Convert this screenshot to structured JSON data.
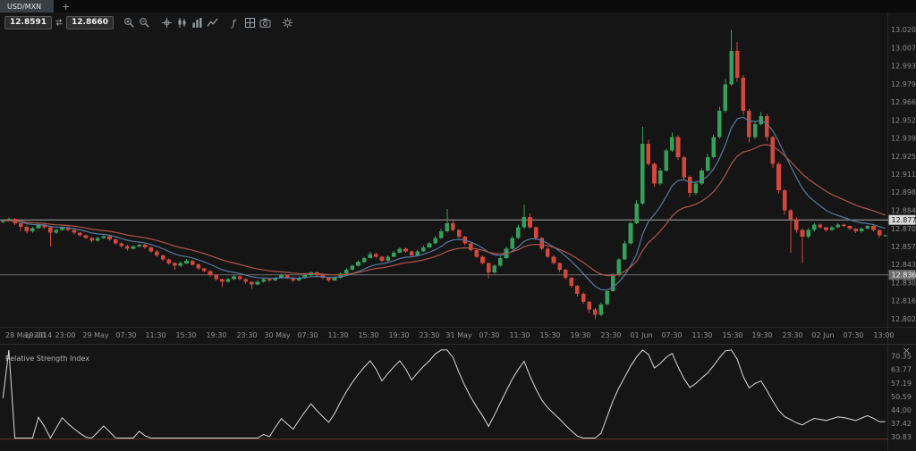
{
  "tabbar": {
    "active_tab": "USD/MXN",
    "new_tab_label": "+"
  },
  "toolbar": {
    "bid": "12.8591",
    "ask": "12.8660",
    "groups": [
      [
        "zoom-in",
        "zoom-out"
      ],
      [
        "crosshair",
        "candlestick",
        "bar-chart",
        "line-chart"
      ],
      [
        "indicators",
        "grid",
        "snapshot"
      ],
      [
        "settings"
      ]
    ]
  },
  "colors": {
    "chart_bg": "#151515",
    "candle_up": "#34a05a",
    "candle_down": "#d4483a",
    "axis_text": "#8c8c8c",
    "time_text": "#909090",
    "separator": "#282828",
    "icon_color": "#979ca1"
  },
  "chart_data": {
    "type": "candlestick",
    "symbol": "USD/MXN",
    "price_axis": {
      "min": 12.797,
      "max": 13.026,
      "labels": [
        "13.0208",
        "13.0072",
        "12.9936",
        "12.9799",
        "12.9663",
        "12.9527",
        "12.9391",
        "12.9254",
        "12.9118",
        "12.8982",
        "12.8846",
        "12.8709",
        "12.8573",
        "12.8437",
        "12.8300",
        "12.8164",
        "12.8027"
      ]
    },
    "time_axis": {
      "labels": [
        "28 May 2014",
        "19:00",
        "23:00",
        "29 May",
        "07:30",
        "11:30",
        "15:30",
        "19:30",
        "23:30",
        "30 May",
        "07:30",
        "11:30",
        "15:30",
        "19:30",
        "23:30",
        "31 May",
        "07:30",
        "11:30",
        "15:30",
        "19:30",
        "23:30",
        "01 Jun",
        "07:30",
        "11:30",
        "15:30",
        "19:30",
        "23:30",
        "02 Jun",
        "07:30",
        "13:00"
      ]
    },
    "price_lines": [
      {
        "value": 12.8777,
        "label": "12.8777",
        "line_color": "#a6a6a6",
        "tag_bg": "#d8d8d8",
        "tag_text": "#161616"
      },
      {
        "value": 12.8363,
        "label": "12.8363",
        "line_color": "#6f6f6f",
        "tag_bg": "#6e6e6e",
        "tag_text": "#f2f2f2"
      }
    ],
    "moving_averages": [
      {
        "name": "ma-fast",
        "period": 10,
        "color": "#56799f"
      },
      {
        "name": "ma-slow",
        "period": 21,
        "color": "#b0544c"
      }
    ],
    "candles": [
      [
        12.876,
        12.8778,
        12.875,
        12.877
      ],
      [
        12.877,
        12.8795,
        12.8765,
        12.8785
      ],
      [
        12.8785,
        12.8791,
        12.8738,
        12.875
      ],
      [
        12.875,
        12.8755,
        12.869,
        12.8725
      ],
      [
        12.8725,
        12.8733,
        12.8675,
        12.869
      ],
      [
        12.869,
        12.8725,
        12.8682,
        12.8715
      ],
      [
        12.8715,
        12.8752,
        12.8709,
        12.874
      ],
      [
        12.874,
        12.8748,
        12.871,
        12.872
      ],
      [
        12.872,
        12.8725,
        12.8575,
        12.868
      ],
      [
        12.868,
        12.871,
        12.8672,
        12.87
      ],
      [
        12.87,
        12.8728,
        12.8694,
        12.872
      ],
      [
        12.872,
        12.8726,
        12.869,
        12.87
      ],
      [
        12.87,
        12.8708,
        12.8668,
        12.868
      ],
      [
        12.868,
        12.8685,
        12.865,
        12.866
      ],
      [
        12.866,
        12.8668,
        12.8632,
        12.864
      ],
      [
        12.864,
        12.8646,
        12.8606,
        12.862
      ],
      [
        12.862,
        12.865,
        12.8614,
        12.864
      ],
      [
        12.864,
        12.8667,
        12.8635,
        12.8655
      ],
      [
        12.8655,
        12.8661,
        12.862,
        12.863
      ],
      [
        12.863,
        12.8638,
        12.8588,
        12.86
      ],
      [
        12.86,
        12.8605,
        12.857,
        12.858
      ],
      [
        12.858,
        12.8588,
        12.8545,
        12.856
      ],
      [
        12.856,
        12.8585,
        12.8554,
        12.8575
      ],
      [
        12.8575,
        12.8598,
        12.857,
        12.859
      ],
      [
        12.859,
        12.8596,
        12.856,
        12.857
      ],
      [
        12.857,
        12.8575,
        12.8528,
        12.854
      ],
      [
        12.854,
        12.8548,
        12.85,
        12.851
      ],
      [
        12.851,
        12.8516,
        12.8465,
        12.848
      ],
      [
        12.848,
        12.8485,
        12.8438,
        12.845
      ],
      [
        12.845,
        12.8458,
        12.84,
        12.843
      ],
      [
        12.843,
        12.846,
        12.8422,
        12.845
      ],
      [
        12.845,
        12.8482,
        12.8445,
        12.847
      ],
      [
        12.847,
        12.8476,
        12.843,
        12.844
      ],
      [
        12.844,
        12.8448,
        12.8398,
        12.841
      ],
      [
        12.841,
        12.8415,
        12.838,
        12.839
      ],
      [
        12.839,
        12.8398,
        12.8346,
        12.836
      ],
      [
        12.836,
        12.8366,
        12.8318,
        12.833
      ],
      [
        12.833,
        12.8335,
        12.827,
        12.831
      ],
      [
        12.831,
        12.834,
        12.8302,
        12.833
      ],
      [
        12.833,
        12.8362,
        12.8324,
        12.835
      ],
      [
        12.835,
        12.8358,
        12.832,
        12.833
      ],
      [
        12.833,
        12.8336,
        12.8298,
        12.831
      ],
      [
        12.831,
        12.8315,
        12.8255,
        12.829
      ],
      [
        12.829,
        12.832,
        12.8282,
        12.831
      ],
      [
        12.831,
        12.8338,
        12.8304,
        12.833
      ],
      [
        12.833,
        12.8342,
        12.831,
        12.832
      ],
      [
        12.832,
        12.8348,
        12.8314,
        12.834
      ],
      [
        12.834,
        12.837,
        12.8335,
        12.836
      ],
      [
        12.836,
        12.8366,
        12.833,
        12.834
      ],
      [
        12.834,
        12.8348,
        12.8308,
        12.832
      ],
      [
        12.832,
        12.835,
        12.8314,
        12.834
      ],
      [
        12.834,
        12.8372,
        12.8335,
        12.836
      ],
      [
        12.836,
        12.8388,
        12.8354,
        12.838
      ],
      [
        12.838,
        12.8386,
        12.835,
        12.836
      ],
      [
        12.836,
        12.8365,
        12.8328,
        12.834
      ],
      [
        12.834,
        12.8348,
        12.831,
        12.832
      ],
      [
        12.832,
        12.835,
        12.8312,
        12.834
      ],
      [
        12.834,
        12.8382,
        12.8335,
        12.837
      ],
      [
        12.837,
        12.841,
        12.8364,
        12.84
      ],
      [
        12.84,
        12.8438,
        12.8395,
        12.843
      ],
      [
        12.843,
        12.8472,
        12.8424,
        12.846
      ],
      [
        12.846,
        12.85,
        12.8452,
        12.849
      ],
      [
        12.849,
        12.8535,
        12.8485,
        12.852
      ],
      [
        12.852,
        12.8528,
        12.849,
        12.85
      ],
      [
        12.85,
        12.8506,
        12.8458,
        12.847
      ],
      [
        12.847,
        12.851,
        12.8462,
        12.85
      ],
      [
        12.85,
        12.8542,
        12.8494,
        12.853
      ],
      [
        12.853,
        12.857,
        12.8525,
        12.856
      ],
      [
        12.856,
        12.8568,
        12.853,
        12.854
      ],
      [
        12.854,
        12.8546,
        12.8498,
        12.851
      ],
      [
        12.851,
        12.855,
        12.8502,
        12.854
      ],
      [
        12.854,
        12.8582,
        12.8535,
        12.857
      ],
      [
        12.857,
        12.861,
        12.8564,
        12.86
      ],
      [
        12.86,
        12.8655,
        12.8592,
        12.864
      ],
      [
        12.864,
        12.871,
        12.8635,
        12.869
      ],
      [
        12.869,
        12.8858,
        12.8682,
        12.875
      ],
      [
        12.875,
        12.878,
        12.869,
        12.87
      ],
      [
        12.87,
        12.8708,
        12.8638,
        12.865
      ],
      [
        12.865,
        12.8656,
        12.8585,
        12.86
      ],
      [
        12.86,
        12.8608,
        12.854,
        12.855
      ],
      [
        12.855,
        12.8555,
        12.8488,
        12.85
      ],
      [
        12.85,
        12.8508,
        12.844,
        12.845
      ],
      [
        12.845,
        12.8455,
        12.8335,
        12.838
      ],
      [
        12.838,
        12.8442,
        12.8372,
        12.843
      ],
      [
        12.843,
        12.85,
        12.8425,
        12.849
      ],
      [
        12.849,
        12.8575,
        12.8482,
        12.856
      ],
      [
        12.856,
        12.8652,
        12.8554,
        12.864
      ],
      [
        12.864,
        12.874,
        12.8635,
        12.872
      ],
      [
        12.872,
        12.8892,
        12.8712,
        12.88
      ],
      [
        12.88,
        12.8825,
        12.871,
        12.872
      ],
      [
        12.872,
        12.8728,
        12.8625,
        12.864
      ],
      [
        12.864,
        12.8646,
        12.8548,
        12.856
      ],
      [
        12.856,
        12.857,
        12.849,
        12.85
      ],
      [
        12.85,
        12.8508,
        12.8438,
        12.845
      ],
      [
        12.845,
        12.8455,
        12.8385,
        12.84
      ],
      [
        12.84,
        12.8408,
        12.8328,
        12.834
      ],
      [
        12.834,
        12.8346,
        12.8265,
        12.828
      ],
      [
        12.828,
        12.8285,
        12.82,
        12.822
      ],
      [
        12.822,
        12.8228,
        12.8145,
        12.816
      ],
      [
        12.816,
        12.8166,
        12.8075,
        12.81
      ],
      [
        12.81,
        12.811,
        12.8027,
        12.806
      ],
      [
        12.806,
        12.8155,
        12.805,
        12.814
      ],
      [
        12.814,
        12.8252,
        12.8132,
        12.824
      ],
      [
        12.824,
        12.8375,
        12.8235,
        12.836
      ],
      [
        12.836,
        12.849,
        12.8352,
        12.848
      ],
      [
        12.848,
        12.862,
        12.8474,
        12.86
      ],
      [
        12.86,
        12.8765,
        12.859,
        12.875
      ],
      [
        12.875,
        12.8925,
        12.8745,
        12.89
      ],
      [
        12.89,
        12.948,
        12.889,
        12.935
      ],
      [
        12.935,
        12.938,
        12.9185,
        12.92
      ],
      [
        12.92,
        12.921,
        12.9025,
        12.905
      ],
      [
        12.905,
        12.917,
        12.9038,
        12.915
      ],
      [
        12.915,
        12.9315,
        12.9142,
        12.93
      ],
      [
        12.93,
        12.9435,
        12.929,
        12.94
      ],
      [
        12.94,
        12.9415,
        12.923,
        12.925
      ],
      [
        12.925,
        12.926,
        12.9075,
        12.91
      ],
      [
        12.91,
        12.9112,
        12.895,
        12.898
      ],
      [
        12.898,
        12.907,
        12.8965,
        12.905
      ],
      [
        12.905,
        12.9165,
        12.904,
        12.915
      ],
      [
        12.915,
        12.9275,
        12.9142,
        12.925
      ],
      [
        12.925,
        12.942,
        12.924,
        12.94
      ],
      [
        12.94,
        12.963,
        12.9392,
        12.96
      ],
      [
        12.96,
        12.984,
        12.9588,
        12.98
      ],
      [
        12.98,
        13.0208,
        12.979,
        13.005
      ],
      [
        13.005,
        13.012,
        12.982,
        12.985
      ],
      [
        12.985,
        12.987,
        12.957,
        12.96
      ],
      [
        12.96,
        12.9615,
        12.936,
        12.94
      ],
      [
        12.94,
        12.9525,
        12.9388,
        12.95
      ],
      [
        12.95,
        12.959,
        12.949,
        12.956
      ],
      [
        12.956,
        12.9575,
        12.9375,
        12.94
      ],
      [
        12.94,
        12.941,
        12.917,
        12.92
      ],
      [
        12.92,
        12.9212,
        12.8975,
        12.9
      ],
      [
        12.9,
        12.901,
        12.8815,
        12.885
      ],
      [
        12.885,
        12.8858,
        12.853,
        12.878
      ],
      [
        12.878,
        12.8795,
        12.868,
        12.87
      ],
      [
        12.87,
        12.871,
        12.845,
        12.865
      ],
      [
        12.865,
        12.8715,
        12.8638,
        12.87
      ],
      [
        12.87,
        12.8752,
        12.8692,
        12.874
      ],
      [
        12.874,
        12.8748,
        12.871,
        12.872
      ],
      [
        12.872,
        12.8726,
        12.8688,
        12.87
      ],
      [
        12.87,
        12.873,
        12.8694,
        12.872
      ],
      [
        12.872,
        12.8752,
        12.8715,
        12.874
      ],
      [
        12.874,
        12.8748,
        12.8722,
        12.873
      ],
      [
        12.873,
        12.8736,
        12.87,
        12.871
      ],
      [
        12.871,
        12.8715,
        12.8678,
        12.869
      ],
      [
        12.869,
        12.872,
        12.8682,
        12.871
      ],
      [
        12.871,
        12.8738,
        12.8705,
        12.873
      ],
      [
        12.873,
        12.8736,
        12.869,
        12.87
      ],
      [
        12.87,
        12.8705,
        12.8645,
        12.866
      ],
      [
        12.866,
        12.8668,
        12.865,
        12.866
      ]
    ],
    "rsi": {
      "title": "Relative Strength Index",
      "close_glyph": "×",
      "period": 14,
      "line_color": "#d9d9d9",
      "oversold_level": 30,
      "oversold_color": "#6e2d2a",
      "scale_max": 73.9,
      "scale_min": 25.9,
      "clamp_max": 73.5,
      "clamp_min": 30.5,
      "axis_labels": [
        "70.35",
        "63.77",
        "57.19",
        "50.59",
        "44.00",
        "37.42",
        "30.83"
      ]
    }
  }
}
